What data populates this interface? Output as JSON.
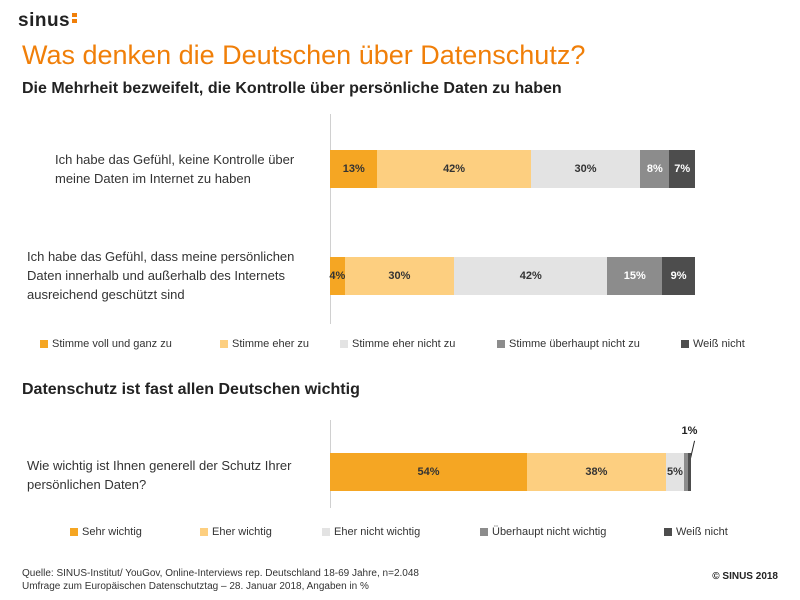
{
  "brand": {
    "logo": "sinus"
  },
  "title": "Was denken die Deutschen über Datenschutz?",
  "subtitle": "Die Mehrheit bezweifelt, die Kontrolle über persönliche Daten zu haben",
  "section2_title": "Datenschutz ist fast allen Deutschen wichtig",
  "colors": {
    "orange": "#f5a623",
    "light_orange": "#fdcf80",
    "light_gray": "#e3e3e3",
    "mid_gray": "#8c8c8c",
    "dark_gray": "#4d4d4d"
  },
  "chart_data": [
    {
      "type": "bar",
      "orientation": "horizontal-stacked",
      "categories": [
        "Ich habe das Gefühl, keine Kontrolle über meine Daten im Internet zu haben",
        "Ich habe das Gefühl, dass meine persönlichen Daten innerhalb und außerhalb des Internets ausreichend geschützt sind"
      ],
      "category_lines": [
        [
          "Ich habe das Gefühl, keine Kontrolle über",
          "meine Daten im Internet zu haben"
        ],
        [
          "Ich habe das Gefühl, dass meine persönlichen",
          "Daten innerhalb und außerhalb des Internets",
          "ausreichend geschützt sind"
        ]
      ],
      "series": [
        {
          "name": "Stimme voll und ganz zu",
          "values": [
            13,
            4
          ],
          "labels": [
            "13%",
            "4%"
          ]
        },
        {
          "name": "Stimme eher zu",
          "values": [
            42,
            30
          ],
          "labels": [
            "42%",
            "30%"
          ]
        },
        {
          "name": "Stimme eher nicht zu",
          "values": [
            30,
            42
          ],
          "labels": [
            "30%",
            "42%"
          ]
        },
        {
          "name": "Stimme überhaupt nicht zu",
          "values": [
            8,
            15
          ],
          "labels": [
            "8%",
            "15%"
          ]
        },
        {
          "name": "Weiß nicht",
          "values": [
            7,
            9
          ],
          "labels": [
            "7%",
            "9%"
          ]
        }
      ],
      "legend_position": "bottom",
      "unit": "%"
    },
    {
      "type": "bar",
      "orientation": "horizontal-stacked",
      "categories": [
        "Wie wichtig ist Ihnen generell der Schutz Ihrer persönlichen Daten?"
      ],
      "category_lines": [
        [
          "Wie wichtig ist Ihnen generell der Schutz Ihrer",
          "persönlichen Daten?"
        ]
      ],
      "series": [
        {
          "name": "Sehr wichtig",
          "values": [
            54
          ],
          "labels": [
            "54%"
          ]
        },
        {
          "name": "Eher wichtig",
          "values": [
            38
          ],
          "labels": [
            "38%"
          ]
        },
        {
          "name": "Eher nicht wichtig",
          "values": [
            5
          ],
          "labels": [
            "5%"
          ]
        },
        {
          "name": "Überhaupt nicht wichtig",
          "values": [
            1
          ],
          "labels": [
            ""
          ]
        },
        {
          "name": "Weiß nicht",
          "values": [
            1
          ],
          "labels": [
            "1%"
          ]
        }
      ],
      "legend_position": "bottom",
      "unit": "%"
    }
  ],
  "footer": {
    "source_line1": "Quelle: SINUS-Institut/ YouGov, Online-Interviews rep. Deutschland 18-69 Jahre, n=2.048",
    "source_line2": "Umfrage zum Europäischen Datenschutztag – 28. Januar 2018, Angaben in %",
    "copyright": "© SINUS 2018"
  }
}
